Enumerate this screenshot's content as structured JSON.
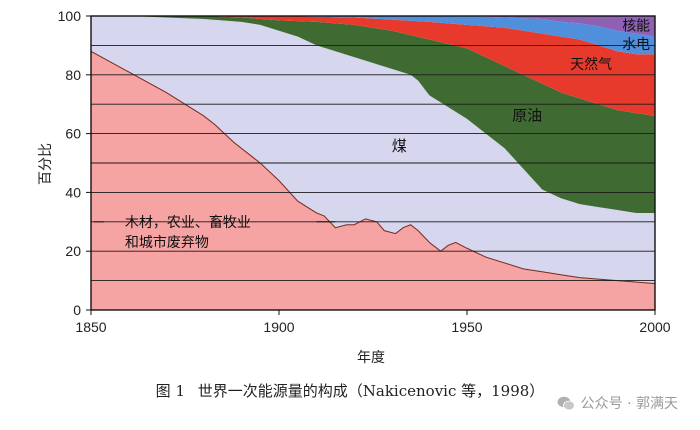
{
  "chart_data": {
    "type": "area",
    "title": "",
    "xlabel": "年度",
    "ylabel": "百分比",
    "xlim": [
      1850,
      2000
    ],
    "ylim": [
      0,
      100
    ],
    "xticks": [
      1850,
      1900,
      1950,
      2000
    ],
    "yticks": [
      0,
      20,
      40,
      60,
      80,
      100
    ],
    "stacked_boundaries": true,
    "series": [
      {
        "name": "木材，农业、畜牧业和城市废弃物",
        "label_lines": [
          "木材，农业、畜牧业",
          "和城市废弃物"
        ],
        "color": "#f5a3a3",
        "points": [
          [
            1850,
            88
          ],
          [
            1860,
            81
          ],
          [
            1870,
            74
          ],
          [
            1880,
            66
          ],
          [
            1883,
            63
          ],
          [
            1888,
            57
          ],
          [
            1895,
            50
          ],
          [
            1900,
            44
          ],
          [
            1905,
            37
          ],
          [
            1910,
            33
          ],
          [
            1912,
            32
          ],
          [
            1915,
            28
          ],
          [
            1918,
            29
          ],
          [
            1920,
            29
          ],
          [
            1923,
            31
          ],
          [
            1926,
            30
          ],
          [
            1928,
            27
          ],
          [
            1931,
            26
          ],
          [
            1933,
            28
          ],
          [
            1935,
            29
          ],
          [
            1937,
            27
          ],
          [
            1940,
            23
          ],
          [
            1943,
            20
          ],
          [
            1945,
            22
          ],
          [
            1947,
            23
          ],
          [
            1950,
            21
          ],
          [
            1955,
            18
          ],
          [
            1960,
            16
          ],
          [
            1965,
            14
          ],
          [
            1970,
            13
          ],
          [
            1975,
            12
          ],
          [
            1980,
            11
          ],
          [
            1990,
            10
          ],
          [
            2000,
            9
          ]
        ]
      },
      {
        "name": "煤",
        "color": "#d6d6ee",
        "points": [
          [
            1850,
            100
          ],
          [
            1860,
            100
          ],
          [
            1870,
            99.5
          ],
          [
            1880,
            99
          ],
          [
            1890,
            98
          ],
          [
            1895,
            97
          ],
          [
            1900,
            95
          ],
          [
            1905,
            93
          ],
          [
            1910,
            90
          ],
          [
            1915,
            88
          ],
          [
            1920,
            86
          ],
          [
            1925,
            84
          ],
          [
            1930,
            82
          ],
          [
            1935,
            80
          ],
          [
            1937,
            78
          ],
          [
            1940,
            73
          ],
          [
            1945,
            69
          ],
          [
            1950,
            65
          ],
          [
            1955,
            60
          ],
          [
            1960,
            55
          ],
          [
            1965,
            48
          ],
          [
            1970,
            41
          ],
          [
            1975,
            38
          ],
          [
            1980,
            36
          ],
          [
            1985,
            35
          ],
          [
            1990,
            34
          ],
          [
            1995,
            33
          ],
          [
            2000,
            33
          ]
        ]
      },
      {
        "name": "原油",
        "color": "#3f6b33",
        "points": [
          [
            1850,
            100
          ],
          [
            1880,
            100
          ],
          [
            1890,
            99.5
          ],
          [
            1900,
            98.5
          ],
          [
            1910,
            98
          ],
          [
            1920,
            97
          ],
          [
            1930,
            95
          ],
          [
            1940,
            92
          ],
          [
            1950,
            89
          ],
          [
            1960,
            83
          ],
          [
            1970,
            77
          ],
          [
            1975,
            74
          ],
          [
            1980,
            72
          ],
          [
            1985,
            70
          ],
          [
            1990,
            68
          ],
          [
            2000,
            66
          ]
        ]
      },
      {
        "name": "天然气",
        "color": "#e83a2c",
        "points": [
          [
            1850,
            100
          ],
          [
            1900,
            100
          ],
          [
            1920,
            99.5
          ],
          [
            1940,
            98
          ],
          [
            1950,
            97
          ],
          [
            1960,
            96
          ],
          [
            1970,
            94
          ],
          [
            1975,
            93
          ],
          [
            1980,
            92
          ],
          [
            1985,
            90
          ],
          [
            1990,
            88
          ],
          [
            1995,
            87
          ],
          [
            2000,
            87
          ]
        ]
      },
      {
        "name": "水电",
        "color": "#4f8fdc",
        "points": [
          [
            1850,
            100
          ],
          [
            1950,
            100
          ],
          [
            1960,
            99.5
          ],
          [
            1970,
            99
          ],
          [
            1975,
            98
          ],
          [
            1980,
            97.5
          ],
          [
            1985,
            96.5
          ],
          [
            1990,
            95
          ],
          [
            1995,
            94
          ],
          [
            2000,
            93
          ]
        ]
      },
      {
        "name": "核能",
        "color": "#8e61b5",
        "points": [
          [
            1850,
            100
          ],
          [
            2000,
            100
          ]
        ]
      }
    ],
    "region_labels": [
      "煤",
      "原油",
      "天然气",
      "水电",
      "核能"
    ]
  },
  "caption": {
    "figure_number": "图 1",
    "text": "世界一次能源量的构成（Nakicenovic 等，1998）"
  },
  "watermark": "公众号 · 郭满天"
}
